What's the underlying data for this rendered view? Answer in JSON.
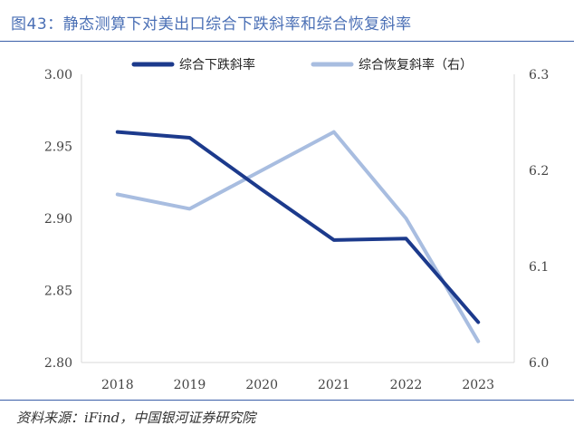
{
  "title": "图43：静态测算下对美出口综合下跌斜率和综合恢复斜率",
  "source": "资料来源：iFind，中国银河证券研究院",
  "chart_data": {
    "type": "line",
    "x": [
      "2018",
      "2019",
      "2020",
      "2021",
      "2022",
      "2023"
    ],
    "series": [
      {
        "name": "综合下跌斜率",
        "axis": "left",
        "color": "#1c3a8c",
        "values": [
          2.96,
          2.956,
          2.92,
          2.885,
          2.886,
          2.828
        ]
      },
      {
        "name": "综合恢复斜率（右）",
        "axis": "right",
        "color": "#a8bde0",
        "values": [
          6.175,
          6.16,
          6.2,
          6.24,
          6.15,
          6.022
        ]
      }
    ],
    "y_left": {
      "min": 2.8,
      "max": 3.0,
      "ticks": [
        "3.00",
        "2.95",
        "2.90",
        "2.85",
        "2.80"
      ]
    },
    "y_right": {
      "min": 6.0,
      "max": 6.3,
      "ticks": [
        "6.3",
        "6.2",
        "6.1",
        "6.0"
      ]
    },
    "legend": "top-center",
    "grid": false
  }
}
